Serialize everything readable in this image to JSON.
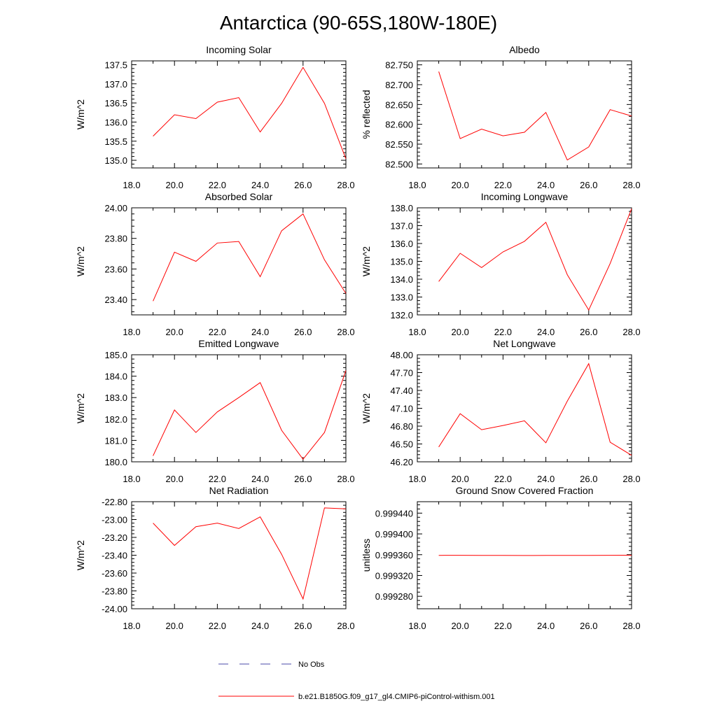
{
  "page": {
    "title": "Antarctica (90-65S,180W-180E)"
  },
  "legend": {
    "obs_label": "No Obs",
    "obs_color": "#4a4aa8",
    "model_label": "b.e21.B1850G.f09_g17_gl4.CMIP6-piControl-withism.001",
    "model_color": "#ff0000"
  },
  "chart_data": [
    {
      "type": "line",
      "title": "Incoming Solar",
      "ylabel": "W/m^2",
      "xlim": [
        18,
        28
      ],
      "xticks": [
        18,
        20,
        22,
        24,
        26,
        28
      ],
      "xtick_labels": [
        "18.0",
        "20.0",
        "22.0",
        "24.0",
        "26.0",
        "28.0"
      ],
      "ylim": [
        134.8,
        137.6
      ],
      "yticks": [
        135.0,
        135.5,
        136.0,
        136.5,
        137.0,
        137.5
      ],
      "ytick_labels": [
        "135.0",
        "135.5",
        "136.0",
        "136.5",
        "137.0",
        "137.5"
      ],
      "series": [
        {
          "x": [
            19,
            20,
            21,
            22,
            23,
            24,
            25,
            26,
            27,
            28
          ],
          "values": [
            135.63,
            136.19,
            136.09,
            136.52,
            136.64,
            135.74,
            136.49,
            137.43,
            136.49,
            135.04
          ]
        }
      ]
    },
    {
      "type": "line",
      "title": "Albedo",
      "ylabel": "% reflected",
      "xlim": [
        18,
        28
      ],
      "xticks": [
        18,
        20,
        22,
        24,
        26,
        28
      ],
      "xtick_labels": [
        "18.0",
        "20.0",
        "22.0",
        "24.0",
        "26.0",
        "28.0"
      ],
      "ylim": [
        82.49,
        82.76
      ],
      "yticks": [
        82.5,
        82.55,
        82.6,
        82.65,
        82.7,
        82.75
      ],
      "ytick_labels": [
        "82.500",
        "82.550",
        "82.600",
        "82.650",
        "82.700",
        "82.750"
      ],
      "series": [
        {
          "x": [
            19,
            20,
            21,
            22,
            23,
            24,
            25,
            26,
            27,
            28
          ],
          "values": [
            82.733,
            82.564,
            82.588,
            82.571,
            82.58,
            82.63,
            82.51,
            82.543,
            82.637,
            82.621
          ]
        }
      ]
    },
    {
      "type": "line",
      "title": "Absorbed Solar",
      "ylabel": "W/m^2",
      "xlim": [
        18,
        28
      ],
      "xticks": [
        18,
        20,
        22,
        24,
        26,
        28
      ],
      "xtick_labels": [
        "18.0",
        "20.0",
        "22.0",
        "24.0",
        "26.0",
        "28.0"
      ],
      "ylim": [
        23.3,
        24.0
      ],
      "yticks": [
        23.4,
        23.6,
        23.8,
        24.0
      ],
      "ytick_labels": [
        "23.40",
        "23.60",
        "23.80",
        "24.00"
      ],
      "series": [
        {
          "x": [
            19,
            20,
            21,
            22,
            23,
            24,
            25,
            26,
            27,
            28
          ],
          "values": [
            23.39,
            23.71,
            23.65,
            23.77,
            23.78,
            23.55,
            23.85,
            23.96,
            23.66,
            23.44
          ]
        }
      ]
    },
    {
      "type": "line",
      "title": "Incoming Longwave",
      "ylabel": "W/m^2",
      "xlim": [
        18,
        28
      ],
      "xticks": [
        18,
        20,
        22,
        24,
        26,
        28
      ],
      "xtick_labels": [
        "18.0",
        "20.0",
        "22.0",
        "24.0",
        "26.0",
        "28.0"
      ],
      "ylim": [
        132.0,
        138.0
      ],
      "yticks": [
        132.0,
        133.0,
        134.0,
        135.0,
        136.0,
        137.0,
        138.0
      ],
      "ytick_labels": [
        "132.0",
        "133.0",
        "134.0",
        "135.0",
        "136.0",
        "137.0",
        "138.0"
      ],
      "series": [
        {
          "x": [
            19,
            20,
            21,
            22,
            23,
            24,
            25,
            26,
            27,
            28
          ],
          "values": [
            133.87,
            135.45,
            134.65,
            135.53,
            136.12,
            137.19,
            134.25,
            132.27,
            134.88,
            137.95
          ]
        }
      ]
    },
    {
      "type": "line",
      "title": "Emitted Longwave",
      "ylabel": "W/m^2",
      "xlim": [
        18,
        28
      ],
      "xticks": [
        18,
        20,
        22,
        24,
        26,
        28
      ],
      "xtick_labels": [
        "18.0",
        "20.0",
        "22.0",
        "24.0",
        "26.0",
        "28.0"
      ],
      "ylim": [
        180.0,
        185.0
      ],
      "yticks": [
        180.0,
        181.0,
        182.0,
        183.0,
        184.0,
        185.0
      ],
      "ytick_labels": [
        "180.0",
        "181.0",
        "182.0",
        "183.0",
        "184.0",
        "185.0"
      ],
      "series": [
        {
          "x": [
            19,
            20,
            21,
            22,
            23,
            24,
            25,
            26,
            27,
            28
          ],
          "values": [
            180.28,
            182.42,
            181.37,
            182.33,
            183.0,
            183.7,
            181.47,
            180.12,
            181.37,
            184.26
          ]
        }
      ]
    },
    {
      "type": "line",
      "title": "Net Longwave",
      "ylabel": "W/m^2",
      "xlim": [
        18,
        28
      ],
      "xticks": [
        18,
        20,
        22,
        24,
        26,
        28
      ],
      "xtick_labels": [
        "18.0",
        "20.0",
        "22.0",
        "24.0",
        "26.0",
        "28.0"
      ],
      "ylim": [
        46.2,
        48.0
      ],
      "yticks": [
        46.2,
        46.5,
        46.8,
        47.1,
        47.4,
        47.7,
        48.0
      ],
      "ytick_labels": [
        "46.20",
        "46.50",
        "46.80",
        "47.10",
        "47.40",
        "47.70",
        "48.00"
      ],
      "series": [
        {
          "x": [
            19,
            20,
            21,
            22,
            23,
            24,
            25,
            26,
            27,
            28
          ],
          "values": [
            46.45,
            47.01,
            46.74,
            46.81,
            46.89,
            46.52,
            47.22,
            47.85,
            46.53,
            46.31
          ]
        }
      ]
    },
    {
      "type": "line",
      "title": "Net Radiation",
      "ylabel": "W/m^2",
      "xlim": [
        18,
        28
      ],
      "xticks": [
        18,
        20,
        22,
        24,
        26,
        28
      ],
      "xtick_labels": [
        "18.0",
        "20.0",
        "22.0",
        "24.0",
        "26.0",
        "28.0"
      ],
      "ylim": [
        -24.0,
        -22.8
      ],
      "yticks": [
        -24.0,
        -23.8,
        -23.6,
        -23.4,
        -23.2,
        -23.0,
        -22.8
      ],
      "ytick_labels": [
        "-24.00",
        "-23.80",
        "-23.60",
        "-23.40",
        "-23.20",
        "-23.00",
        "-22.80"
      ],
      "series": [
        {
          "x": [
            19,
            20,
            21,
            22,
            23,
            24,
            25,
            26,
            27,
            28
          ],
          "values": [
            -23.04,
            -23.29,
            -23.08,
            -23.04,
            -23.1,
            -22.97,
            -23.39,
            -23.89,
            -22.87,
            -22.88
          ]
        }
      ]
    },
    {
      "type": "line",
      "title": "Ground Snow Covered Fraction",
      "ylabel": "unitless",
      "xlim": [
        18,
        28
      ],
      "xticks": [
        18,
        20,
        22,
        24,
        26,
        28
      ],
      "xtick_labels": [
        "18.0",
        "20.0",
        "22.0",
        "24.0",
        "26.0",
        "28.0"
      ],
      "ylim": [
        0.999256,
        0.999462
      ],
      "yticks": [
        0.99928,
        0.99932,
        0.99936,
        0.9994,
        0.99944
      ],
      "ytick_labels": [
        "0.999280",
        "0.999320",
        "0.999360",
        "0.999400",
        "0.999440"
      ],
      "series": [
        {
          "x": [
            19,
            20,
            21,
            22,
            23,
            24,
            25,
            26,
            27,
            28
          ],
          "values": [
            0.9993587,
            0.9993589,
            0.9993586,
            0.9993586,
            0.9993585,
            0.9993586,
            0.9993587,
            0.9993587,
            0.9993588,
            0.999359
          ]
        }
      ]
    }
  ]
}
